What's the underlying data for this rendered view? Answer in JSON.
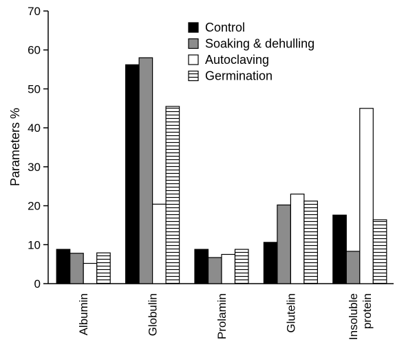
{
  "chart_data": {
    "type": "bar",
    "title": "",
    "xlabel": "",
    "ylabel": "Parameters %",
    "ylim": [
      0,
      70
    ],
    "yticks": [
      0,
      10,
      20,
      30,
      40,
      50,
      60,
      70
    ],
    "grid": false,
    "legend_position": "top-right",
    "categories": [
      [
        "Albumin"
      ],
      [
        "Globulin"
      ],
      [
        "Prolamin"
      ],
      [
        "Glutelin"
      ],
      [
        "Insoluble",
        "protein"
      ]
    ],
    "series": [
      {
        "name": "Control",
        "fill": "black",
        "values": [
          8.8,
          56.2,
          8.8,
          10.6,
          17.6
        ]
      },
      {
        "name": "Soaking & dehulling",
        "fill": "gray",
        "values": [
          7.8,
          58.0,
          6.7,
          20.2,
          8.3
        ]
      },
      {
        "name": "Autoclaving",
        "fill": "white",
        "values": [
          5.2,
          20.4,
          7.5,
          23.0,
          45.0
        ]
      },
      {
        "name": "Germination",
        "fill": "hlines",
        "values": [
          7.9,
          45.5,
          8.8,
          21.2,
          16.4
        ]
      }
    ],
    "colors": {
      "black": "#000000",
      "gray": "#8c8c8c",
      "white": "#ffffff"
    }
  }
}
